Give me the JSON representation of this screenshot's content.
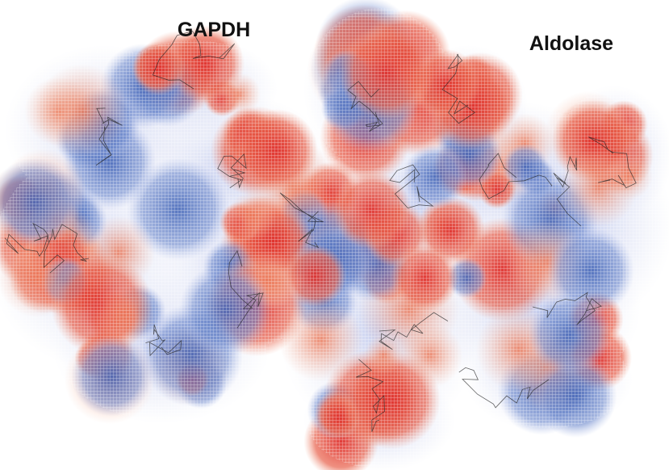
{
  "labels": [
    "GAPDH",
    "Aldolase"
  ]
}
